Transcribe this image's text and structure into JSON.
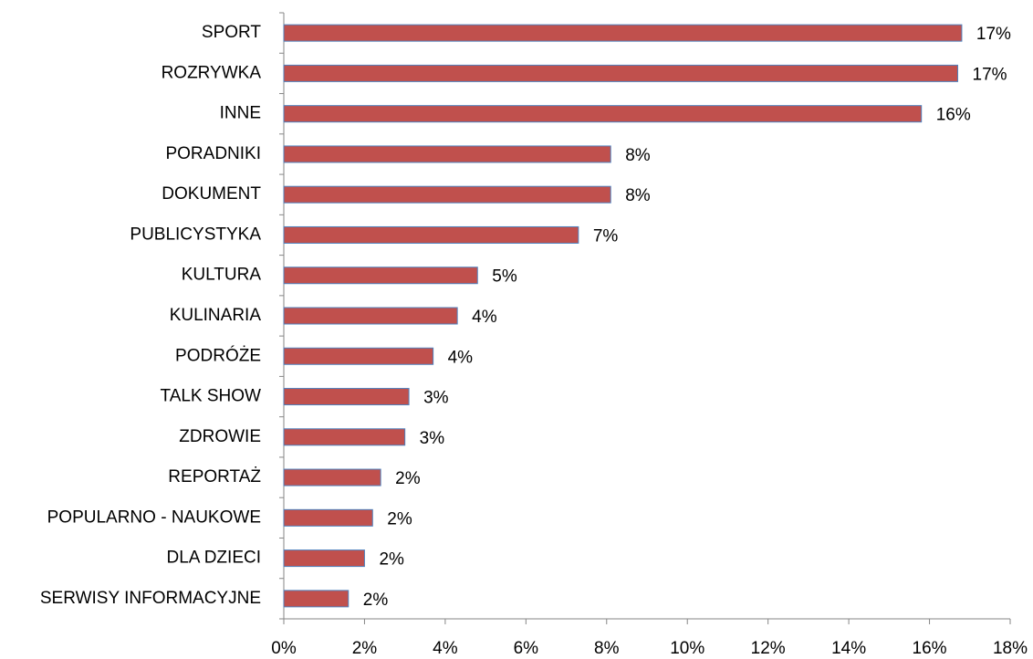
{
  "chart_data": {
    "type": "hbar",
    "categories": [
      "SPORT",
      "ROZRYWKA",
      "INNE",
      "PORADNIKI",
      "DOKUMENT",
      "PUBLICYSTYKA",
      "KULTURA",
      "KULINARIA",
      "PODRÓŻE",
      "TALK SHOW",
      "ZDROWIE",
      "REPORTAŻ",
      "POPULARNO - NAUKOWE",
      "DLA DZIECI",
      "SERWISY INFORMACYJNE"
    ],
    "values": [
      16.8,
      16.7,
      15.8,
      8.1,
      8.1,
      7.3,
      4.8,
      4.3,
      3.7,
      3.1,
      3.0,
      2.4,
      2.2,
      2.0,
      1.6
    ],
    "value_labels": [
      "17%",
      "17%",
      "16%",
      "8%",
      "8%",
      "7%",
      "5%",
      "4%",
      "4%",
      "3%",
      "3%",
      "2%",
      "2%",
      "2%",
      "2%"
    ],
    "color": "#c0504d",
    "edge_color": "#4f81bd",
    "xlim": [
      0,
      18
    ],
    "xticks": [
      {
        "value": 0,
        "label": "0%"
      },
      {
        "value": 2,
        "label": "2%"
      },
      {
        "value": 4,
        "label": "4%"
      },
      {
        "value": 6,
        "label": "6%"
      },
      {
        "value": 8,
        "label": "8%"
      },
      {
        "value": 10,
        "label": "10%"
      },
      {
        "value": 12,
        "label": "12%"
      },
      {
        "value": 14,
        "label": "14%"
      },
      {
        "value": 16,
        "label": "16%"
      },
      {
        "value": 18,
        "label": "18%"
      }
    ],
    "grid": false
  }
}
